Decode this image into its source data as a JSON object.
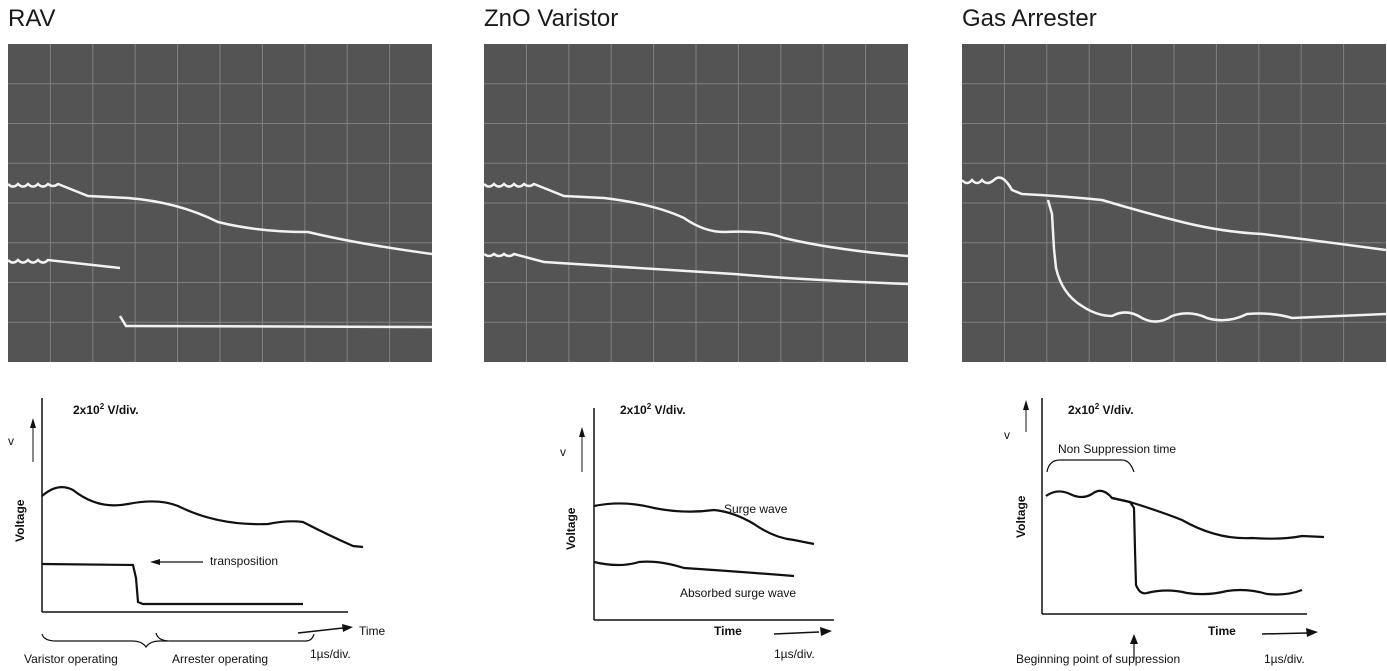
{
  "panels": [
    {
      "title": "RAV",
      "diagram": {
        "scale": "2x10",
        "scale_exp": "2",
        "scale_unit": "V/div.",
        "v_label": "v",
        "y_label": "Voltage",
        "annotation": "transposition",
        "time_label": "Time",
        "time_div": "1µs/div.",
        "phase_left": "Varistor operating",
        "phase_right": "Arrester operating"
      }
    },
    {
      "title": "ZnO Varistor",
      "diagram": {
        "scale": "2x10",
        "scale_exp": "2",
        "scale_unit": "V/div.",
        "v_label": "v",
        "y_label": "Voltage",
        "surge_label": "Surge wave",
        "absorbed_label": "Absorbed surge wave",
        "time_label": "Time",
        "time_div": "1µs/div."
      }
    },
    {
      "title": "Gas Arrester",
      "diagram": {
        "scale": "2x10",
        "scale_exp": "2",
        "scale_unit": "V/div.",
        "v_label": "v",
        "y_label": "Voltage",
        "non_suppression": "Non Suppression time",
        "time_label": "Time",
        "beginning": "Beginning point of suppression",
        "time_div": "1µs/div."
      }
    }
  ],
  "colors": {
    "scope_bg": "#545454",
    "grid": "#8c8c8c",
    "trace": "#f2f2f2",
    "ink": "#111111"
  }
}
